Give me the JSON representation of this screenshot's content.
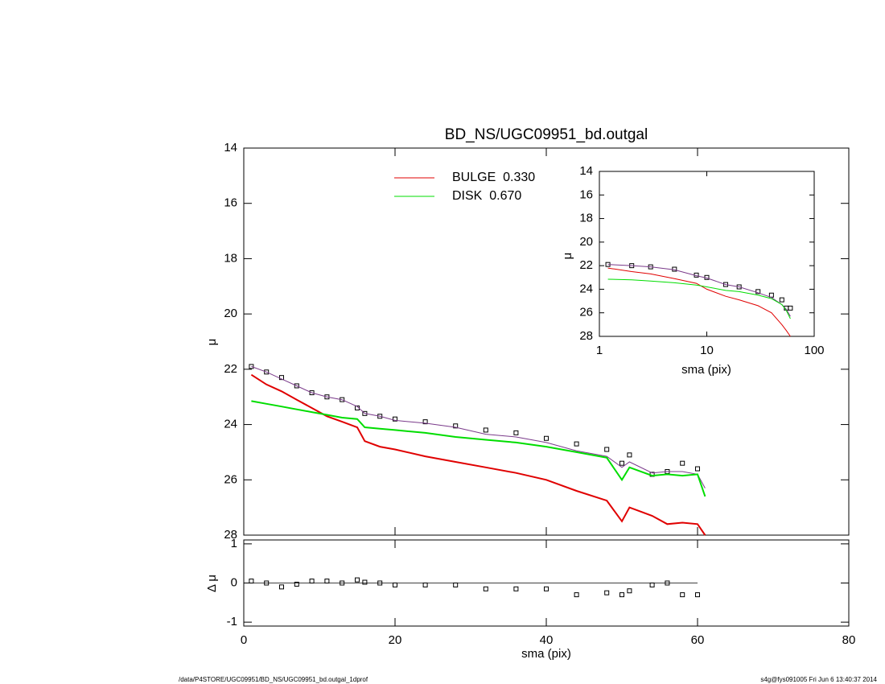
{
  "chart_data": [
    {
      "type": "line",
      "title": "BD_NS/UGC09951_bd.outgal",
      "ylabel": "μ",
      "xlim": [
        0,
        80
      ],
      "ylim": [
        28,
        14
      ],
      "xticks": [
        0,
        20,
        40,
        60,
        80
      ],
      "xtick_labels": false,
      "yticks": [
        14,
        16,
        18,
        20,
        22,
        24,
        26,
        28
      ],
      "legend": "upper center",
      "x": [
        1,
        3,
        5,
        7,
        9,
        11,
        13,
        15,
        16,
        18,
        20,
        24,
        28,
        32,
        36,
        40,
        44,
        48,
        50,
        51,
        54,
        56,
        58,
        60,
        61
      ],
      "series": [
        {
          "style": "markers",
          "color": "#000000",
          "values": [
            21.9,
            22.1,
            22.3,
            22.6,
            22.85,
            23.0,
            23.1,
            23.4,
            23.6,
            23.7,
            23.8,
            23.9,
            24.05,
            24.2,
            24.3,
            24.5,
            24.7,
            24.9,
            25.4,
            25.1,
            25.8,
            25.7,
            25.4,
            25.6,
            null
          ]
        },
        {
          "style": "line",
          "color": "#7a3a8a",
          "values": [
            21.9,
            22.1,
            22.35,
            22.6,
            22.85,
            23.0,
            23.1,
            23.35,
            23.6,
            23.7,
            23.85,
            23.95,
            24.1,
            24.35,
            24.45,
            24.65,
            24.95,
            25.15,
            25.55,
            25.35,
            25.75,
            25.7,
            25.7,
            25.8,
            26.3
          ]
        },
        {
          "name": "BULGE  0.330",
          "style": "line",
          "color": "#e00000",
          "values": [
            22.2,
            22.55,
            22.8,
            23.1,
            23.4,
            23.7,
            23.9,
            24.1,
            24.6,
            24.8,
            24.9,
            25.15,
            25.35,
            25.55,
            25.75,
            26.0,
            26.4,
            26.75,
            27.5,
            27.0,
            27.3,
            27.6,
            27.55,
            27.6,
            28.0
          ]
        },
        {
          "name": "DISK  0.670",
          "style": "line",
          "color": "#00dd00",
          "values": [
            23.15,
            23.25,
            23.35,
            23.45,
            23.55,
            23.65,
            23.75,
            23.8,
            24.1,
            24.15,
            24.2,
            24.3,
            24.45,
            24.55,
            24.65,
            24.8,
            25.0,
            25.2,
            26.0,
            25.55,
            25.85,
            25.8,
            25.85,
            25.8,
            26.6
          ]
        }
      ]
    },
    {
      "type": "line",
      "xlabel": "sma (pix)",
      "ylabel": "Δ μ",
      "xlim": [
        0,
        80
      ],
      "ylim": [
        -1.1,
        1.1
      ],
      "xticks": [
        0,
        20,
        40,
        60,
        80
      ],
      "yticks": [
        1,
        0,
        -1
      ],
      "hline": 0,
      "x": [
        1,
        3,
        5,
        7,
        9,
        11,
        13,
        15,
        16,
        18,
        20,
        24,
        28,
        32,
        36,
        40,
        44,
        48,
        50,
        51,
        54,
        56,
        58,
        60
      ],
      "series": [
        {
          "style": "markers",
          "color": "#000000",
          "values": [
            0.05,
            0.0,
            -0.1,
            -0.03,
            0.05,
            0.05,
            0.0,
            0.08,
            0.02,
            0.0,
            -0.05,
            -0.05,
            -0.05,
            -0.15,
            -0.15,
            -0.15,
            -0.3,
            -0.25,
            -0.3,
            -0.2,
            -0.05,
            0.0,
            -0.3,
            -0.3
          ]
        }
      ]
    },
    {
      "type": "line",
      "xlabel": "sma (pix)",
      "ylabel": "μ",
      "xlog": true,
      "xlim": [
        1,
        100
      ],
      "ylim": [
        28,
        14
      ],
      "xticks": [
        1,
        10,
        100
      ],
      "yticks": [
        14,
        16,
        18,
        20,
        22,
        24,
        26,
        28
      ],
      "x": [
        1.2,
        2,
        3,
        5,
        8,
        10,
        15,
        20,
        30,
        40,
        50,
        55,
        60
      ],
      "series": [
        {
          "style": "markers",
          "color": "#000000",
          "values": [
            21.9,
            22.0,
            22.1,
            22.3,
            22.8,
            23.0,
            23.6,
            23.8,
            24.2,
            24.5,
            24.9,
            25.6,
            25.6
          ]
        },
        {
          "style": "line",
          "color": "#7a3a8a",
          "values": [
            21.9,
            22.0,
            22.1,
            22.35,
            22.85,
            23.05,
            23.6,
            23.8,
            24.3,
            24.7,
            25.3,
            25.7,
            26.3
          ]
        },
        {
          "style": "line",
          "color": "#e00000",
          "values": [
            22.2,
            22.5,
            22.7,
            23.1,
            23.5,
            24.0,
            24.6,
            24.9,
            25.4,
            26.0,
            27.0,
            27.5,
            28.0
          ]
        },
        {
          "style": "line",
          "color": "#00dd00",
          "values": [
            23.15,
            23.2,
            23.3,
            23.45,
            23.65,
            23.8,
            24.1,
            24.2,
            24.5,
            24.8,
            25.3,
            25.8,
            26.5
          ]
        }
      ]
    }
  ],
  "footer": {
    "path": "/data/P4STORE/UGC09951/BD_NS/UGC09951_bd.outgal_1dprof",
    "stamp": "s4g@fys091005  Fri Jun  6 13:40:37 2014"
  }
}
